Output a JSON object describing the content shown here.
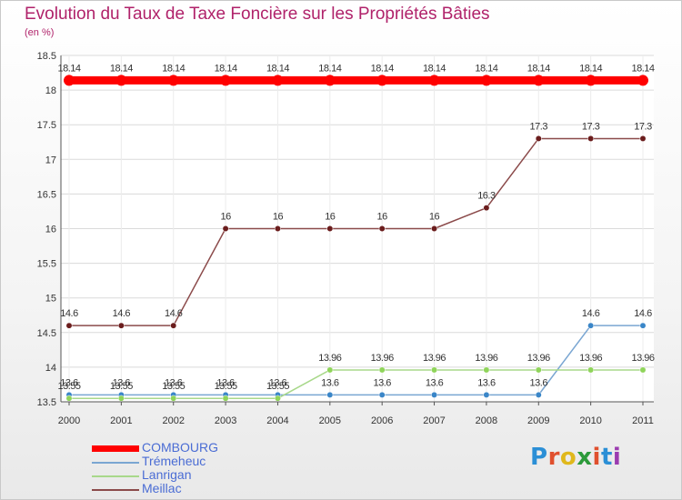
{
  "title": "Evolution du Taux de Taxe Foncière sur les Propriétés Bâties",
  "unit": "(en %)",
  "logo": {
    "text": "Proxiti",
    "letters": [
      "P",
      "r",
      "o",
      "x",
      "i",
      "t",
      "i"
    ]
  },
  "chart_data": {
    "type": "line",
    "title": "Evolution du Taux de Taxe Foncière sur les Propriétés Bâties",
    "ylabel": "(en %)",
    "xlabel": "",
    "categories": [
      "2000",
      "2001",
      "2002",
      "2003",
      "2004",
      "2005",
      "2006",
      "2007",
      "2008",
      "2009",
      "2010",
      "2011"
    ],
    "ylim": [
      13.5,
      18.5
    ],
    "yticks": [
      "13.5",
      "14",
      "14.5",
      "15",
      "15.5",
      "16",
      "16.5",
      "17",
      "17.5",
      "18",
      "18.5"
    ],
    "grid": "horizontal",
    "legend_position": "bottom-left",
    "series": [
      {
        "name": "COMBOURG",
        "color": "#ff0000",
        "marker_color": "#ff0000",
        "values": [
          18.14,
          18.14,
          18.14,
          18.14,
          18.14,
          18.14,
          18.14,
          18.14,
          18.14,
          18.14,
          18.14,
          18.14
        ],
        "labels": [
          "18.14",
          "18.14",
          "18.14",
          "18.14",
          "18.14",
          "18.14",
          "18.14",
          "18.14",
          "18.14",
          "18.14",
          "18.14",
          "18.14"
        ]
      },
      {
        "name": "Trémeheuc",
        "color": "#7aa6d2",
        "marker_color": "#3a86c8",
        "values": [
          13.6,
          13.6,
          13.6,
          13.6,
          13.6,
          13.6,
          13.6,
          13.6,
          13.6,
          13.6,
          14.6,
          14.6
        ],
        "labels": [
          "13.6",
          "13.6",
          "13.6",
          "13.6",
          "13.6",
          "13.6",
          "13.6",
          "13.6",
          "13.6",
          "13.6",
          "14.6",
          "14.6"
        ]
      },
      {
        "name": "Lanrigan",
        "color": "#a8d88a",
        "marker_color": "#8fd45a",
        "values": [
          13.55,
          13.55,
          13.55,
          13.55,
          13.55,
          13.96,
          13.96,
          13.96,
          13.96,
          13.96,
          13.96,
          13.96
        ],
        "labels": [
          "13.55",
          "13.55",
          "13.55",
          "13.55",
          "13.55",
          "13.96",
          "13.96",
          "13.96",
          "13.96",
          "13.96",
          "13.96",
          "13.96"
        ]
      },
      {
        "name": "Meillac",
        "color": "#8b4a4a",
        "marker_color": "#6b1d1d",
        "values": [
          14.6,
          14.6,
          14.6,
          16,
          16,
          16,
          16,
          16,
          16.3,
          17.3,
          17.3,
          17.3
        ],
        "labels": [
          "14.6",
          "14.6",
          "14.6",
          "16",
          "16",
          "16",
          "16",
          "16",
          "16.3",
          "17.3",
          "17.3",
          "17.3"
        ]
      }
    ]
  }
}
